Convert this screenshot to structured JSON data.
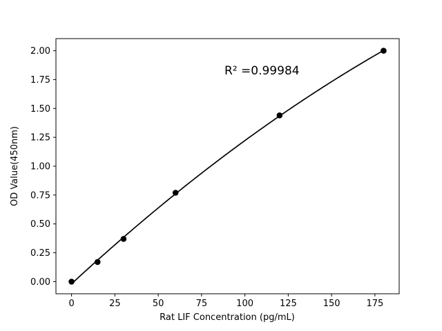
{
  "chart_data": {
    "type": "line",
    "title": "",
    "xlabel": "Rat LIF Concentration (pg/mL)",
    "ylabel": "OD Value(450nm)",
    "annotation": {
      "text": "R² =0.99984",
      "x": 88.2,
      "y": 1.795
    },
    "x": [
      0,
      15,
      30,
      60,
      120,
      180
    ],
    "y": [
      0.0,
      0.17,
      0.37,
      0.77,
      1.44,
      2.0
    ],
    "series_name": "rat-lif-standard-curve",
    "fit": "quadratic",
    "xlim": [
      -9,
      189
    ],
    "ylim": [
      -0.105,
      2.105
    ],
    "xticks": [
      0,
      25,
      50,
      75,
      100,
      125,
      150,
      175
    ],
    "yticks": [
      0.0,
      0.25,
      0.5,
      0.75,
      1.0,
      1.25,
      1.5,
      1.75,
      2.0
    ],
    "ytick_decimals": 2,
    "line_color": "#000000",
    "marker_color": "#000000",
    "frame_color": "#000000",
    "background": "#ffffff",
    "grid": false,
    "legend": null
  }
}
